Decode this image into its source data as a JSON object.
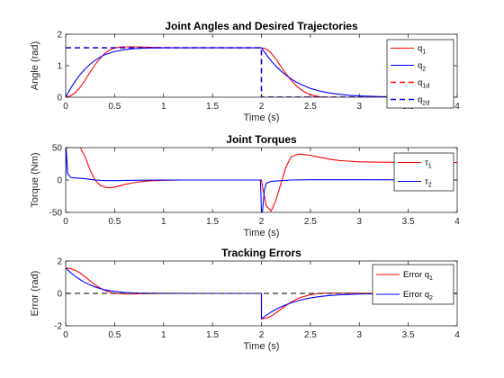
{
  "figure": {
    "background": "#ffffff"
  },
  "chart_data": [
    {
      "type": "line",
      "title": "Joint Angles and Desired Trajectories",
      "xlabel": "Time (s)",
      "ylabel": "Angle (rad)",
      "xlim": [
        0,
        4
      ],
      "ylim": [
        0,
        2
      ],
      "xticks": [
        "0",
        "0.5",
        "1",
        "1.5",
        "2",
        "2.5",
        "3",
        "3.5",
        "4"
      ],
      "yticks": [
        "0",
        "1",
        "2"
      ],
      "grid": false,
      "legend_position": "top-right",
      "series": [
        {
          "name": "q",
          "sub": "1",
          "color": "#ff0000",
          "dash": "solid",
          "x": [
            0,
            0.05,
            0.1,
            0.15,
            0.2,
            0.25,
            0.3,
            0.35,
            0.4,
            0.45,
            0.5,
            0.55,
            0.6,
            0.7,
            0.8,
            0.9,
            1.0,
            1.2,
            1.5,
            1.8,
            2.0,
            2.05,
            2.1,
            2.15,
            2.2,
            2.25,
            2.3,
            2.35,
            2.4,
            2.45,
            2.5,
            2.6,
            2.7,
            2.8,
            2.9,
            3.0,
            3.2,
            3.5,
            4.0
          ],
          "y": [
            0,
            0.04,
            0.15,
            0.32,
            0.55,
            0.8,
            1.03,
            1.23,
            1.39,
            1.5,
            1.56,
            1.59,
            1.6,
            1.6,
            1.59,
            1.58,
            1.575,
            1.571,
            1.571,
            1.571,
            1.571,
            1.53,
            1.4,
            1.2,
            0.97,
            0.75,
            0.55,
            0.38,
            0.25,
            0.15,
            0.08,
            0.01,
            -0.02,
            -0.02,
            -0.015,
            -0.01,
            0.0,
            0.0,
            0.0
          ]
        },
        {
          "name": "q",
          "sub": "2",
          "color": "#0000ff",
          "dash": "solid",
          "x": [
            0,
            0.05,
            0.1,
            0.15,
            0.2,
            0.25,
            0.3,
            0.35,
            0.4,
            0.5,
            0.6,
            0.7,
            0.8,
            0.9,
            1.0,
            1.2,
            1.5,
            1.8,
            2.0,
            2.05,
            2.1,
            2.15,
            2.2,
            2.25,
            2.3,
            2.35,
            2.4,
            2.5,
            2.6,
            2.7,
            2.8,
            2.9,
            3.0,
            3.2,
            3.5,
            4.0
          ],
          "y": [
            0,
            0.28,
            0.52,
            0.73,
            0.9,
            1.05,
            1.17,
            1.27,
            1.35,
            1.45,
            1.51,
            1.54,
            1.555,
            1.563,
            1.567,
            1.57,
            1.571,
            1.571,
            1.571,
            1.35,
            1.15,
            0.98,
            0.83,
            0.7,
            0.59,
            0.49,
            0.41,
            0.28,
            0.19,
            0.13,
            0.09,
            0.06,
            0.04,
            0.02,
            0.005,
            0.0
          ]
        },
        {
          "name": "q",
          "sub": "1d",
          "color": "#ff0000",
          "dash": "dashed",
          "x": [
            0,
            2,
            2,
            4
          ],
          "y": [
            1.571,
            1.571,
            0,
            0
          ]
        },
        {
          "name": "q",
          "sub": "2d",
          "color": "#0000ff",
          "dash": "dashed",
          "x": [
            0,
            2,
            2,
            4
          ],
          "y": [
            1.571,
            1.571,
            0,
            0
          ]
        }
      ]
    },
    {
      "type": "line",
      "title": "Joint Torques",
      "xlabel": "Time (s)",
      "ylabel": "Torque (Nm)",
      "xlim": [
        0,
        4
      ],
      "ylim": [
        -50,
        50
      ],
      "xticks": [
        "0",
        "0.5",
        "1",
        "1.5",
        "2",
        "2.5",
        "3",
        "3.5",
        "4"
      ],
      "yticks": [
        "-50",
        "0",
        "50"
      ],
      "grid": false,
      "legend_position": "top-right",
      "series": [
        {
          "name": "τ",
          "sub": "1",
          "color": "#ff0000",
          "dash": "solid",
          "x": [
            0,
            0.15,
            0.2,
            0.25,
            0.3,
            0.35,
            0.4,
            0.45,
            0.5,
            0.6,
            0.7,
            0.8,
            0.9,
            1.0,
            1.2,
            1.5,
            1.8,
            2.0,
            2.01,
            2.05,
            2.1,
            2.15,
            2.2,
            2.25,
            2.3,
            2.35,
            2.4,
            2.45,
            2.5,
            2.6,
            2.7,
            2.8,
            2.9,
            3.0,
            3.2,
            3.5,
            4.0
          ],
          "y": [
            50,
            50,
            35,
            15,
            0,
            -8,
            -11,
            -12,
            -11,
            -7,
            -4,
            -2,
            -1,
            -0.5,
            0,
            0,
            0,
            0,
            -10,
            -40,
            -48,
            -30,
            -5,
            20,
            35,
            39,
            40,
            39,
            38,
            35,
            32,
            30,
            29,
            28,
            27.5,
            27.2,
            27.0
          ]
        },
        {
          "name": "τ",
          "sub": "2",
          "color": "#0000ff",
          "dash": "solid",
          "x": [
            0,
            0.005,
            0.02,
            0.05,
            0.1,
            0.15,
            0.2,
            0.25,
            0.3,
            0.4,
            0.5,
            0.7,
            1.0,
            1.5,
            1.99,
            2.0,
            2.01,
            2.03,
            2.05,
            2.1,
            2.2,
            2.3,
            2.5,
            3.0,
            3.5,
            4.0
          ],
          "y": [
            0,
            50,
            10,
            4,
            3,
            2.5,
            2,
            1,
            0,
            -1,
            -1,
            -0.5,
            0,
            0,
            0,
            -50,
            -50,
            -15,
            -5,
            -2,
            -1,
            0,
            0.5,
            0.5,
            0.3,
            0
          ]
        }
      ]
    },
    {
      "type": "line",
      "title": "Tracking Errors",
      "xlabel": "Time (s)",
      "ylabel": "Error (rad)",
      "xlim": [
        0,
        4
      ],
      "ylim": [
        -2,
        2
      ],
      "xticks": [
        "0",
        "0.5",
        "1",
        "1.5",
        "2",
        "2.5",
        "3",
        "3.5",
        "4"
      ],
      "yticks": [
        "-2",
        "0",
        "2"
      ],
      "grid": false,
      "legend_position": "top-right",
      "series": [
        {
          "name": "Error q",
          "sub": "1",
          "color": "#ff0000",
          "dash": "solid",
          "x": [
            0,
            0.05,
            0.1,
            0.15,
            0.2,
            0.25,
            0.3,
            0.35,
            0.4,
            0.45,
            0.5,
            0.6,
            0.7,
            0.8,
            1.0,
            1.5,
            2.0,
            2.0,
            2.05,
            2.1,
            2.15,
            2.2,
            2.25,
            2.3,
            2.35,
            2.4,
            2.5,
            2.6,
            2.7,
            2.8,
            3.0,
            3.5,
            4.0
          ],
          "y": [
            1.571,
            1.53,
            1.42,
            1.25,
            1.02,
            0.77,
            0.54,
            0.34,
            0.18,
            0.07,
            0.01,
            -0.03,
            -0.03,
            -0.02,
            -0.005,
            0,
            0,
            -1.571,
            -1.53,
            -1.4,
            -1.2,
            -0.97,
            -0.75,
            -0.55,
            -0.38,
            -0.25,
            -0.08,
            0.01,
            0.02,
            0.02,
            0.01,
            0,
            0
          ]
        },
        {
          "name": "Error q",
          "sub": "2",
          "color": "#0000ff",
          "dash": "solid",
          "x": [
            0,
            0.05,
            0.1,
            0.15,
            0.2,
            0.25,
            0.3,
            0.35,
            0.4,
            0.5,
            0.6,
            0.7,
            0.8,
            1.0,
            1.5,
            2.0,
            2.0,
            2.05,
            2.1,
            2.15,
            2.2,
            2.25,
            2.3,
            2.4,
            2.5,
            2.6,
            2.7,
            2.8,
            3.0,
            3.5,
            4.0
          ],
          "y": [
            1.571,
            1.29,
            1.05,
            0.84,
            0.67,
            0.52,
            0.4,
            0.3,
            0.22,
            0.12,
            0.06,
            0.03,
            0.015,
            0.004,
            0,
            0,
            -1.571,
            -1.35,
            -1.15,
            -0.98,
            -0.83,
            -0.7,
            -0.59,
            -0.41,
            -0.28,
            -0.19,
            -0.13,
            -0.09,
            -0.04,
            -0.005,
            0
          ]
        },
        {
          "name": "",
          "sub": "",
          "color": "#555555",
          "dash": "dashed",
          "in_legend": false,
          "x": [
            0,
            4
          ],
          "y": [
            0,
            0
          ]
        }
      ]
    }
  ]
}
